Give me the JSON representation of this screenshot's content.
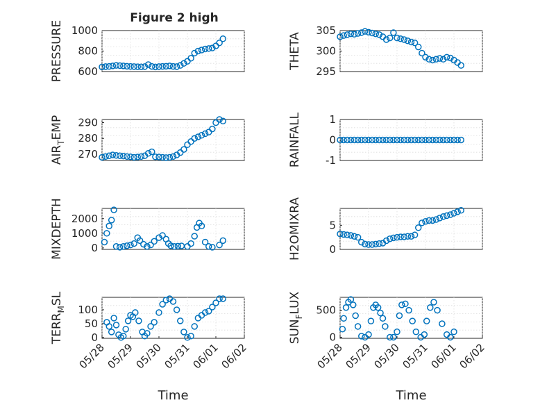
{
  "figure": {
    "title": "Figure 2 high"
  },
  "chart_data": [
    {
      "type": "scatter",
      "title": "Figure 2 high",
      "xlabel": "",
      "ylabel": "PRESSURE",
      "ylim": [
        600,
        1000
      ],
      "yticks": [
        600,
        800,
        1000
      ],
      "xticks": [],
      "grid": true,
      "x": [
        "05/28 00:00",
        "05/28 03:00",
        "05/28 06:00",
        "05/28 09:00",
        "05/28 12:00",
        "05/28 15:00",
        "05/28 18:00",
        "05/28 21:00",
        "05/29 00:00",
        "05/29 03:00",
        "05/29 06:00",
        "05/29 09:00",
        "05/29 12:00",
        "05/29 15:00",
        "05/29 18:00",
        "05/29 21:00",
        "05/30 00:00",
        "05/30 03:00",
        "05/30 06:00",
        "05/30 09:00",
        "05/30 12:00",
        "05/30 15:00",
        "05/30 18:00",
        "05/30 21:00",
        "05/31 00:00",
        "05/31 03:00",
        "05/31 06:00",
        "05/31 09:00",
        "05/31 12:00",
        "05/31 15:00",
        "05/31 18:00",
        "05/31 21:00",
        "06/01 00:00",
        "06/01 03:00",
        "06/01 06:00"
      ],
      "y": [
        645,
        648,
        650,
        655,
        660,
        658,
        655,
        652,
        650,
        648,
        647,
        646,
        648,
        668,
        650,
        645,
        648,
        650,
        652,
        655,
        650,
        648,
        660,
        680,
        700,
        730,
        780,
        800,
        810,
        820,
        825,
        830,
        850,
        880,
        920
      ]
    },
    {
      "type": "scatter",
      "xlabel": "",
      "ylabel": "THETA",
      "ylim": [
        295,
        305
      ],
      "yticks": [
        295,
        300,
        305
      ],
      "xticks": [],
      "grid": true,
      "x": [
        "05/28 00:00",
        "05/28 03:00",
        "05/28 06:00",
        "05/28 09:00",
        "05/28 12:00",
        "05/28 15:00",
        "05/28 18:00",
        "05/28 21:00",
        "05/29 00:00",
        "05/29 03:00",
        "05/29 06:00",
        "05/29 09:00",
        "05/29 12:00",
        "05/29 15:00",
        "05/29 18:00",
        "05/29 21:00",
        "05/30 00:00",
        "05/30 03:00",
        "05/30 06:00",
        "05/30 09:00",
        "05/30 12:00",
        "05/30 15:00",
        "05/30 18:00",
        "05/30 21:00",
        "05/31 00:00",
        "05/31 03:00",
        "05/31 06:00",
        "05/31 09:00",
        "05/31 12:00",
        "05/31 15:00",
        "05/31 18:00",
        "05/31 21:00",
        "06/01 00:00",
        "06/01 03:00",
        "06/01 06:00"
      ],
      "y": [
        303.5,
        303.8,
        304,
        304.2,
        304.1,
        304.3,
        304.5,
        304.8,
        304.6,
        304.4,
        304.2,
        304,
        303.5,
        302.8,
        303.2,
        304.5,
        303.2,
        303,
        302.8,
        302.5,
        302.2,
        302,
        301,
        299.5,
        298.5,
        298,
        297.8,
        298,
        298.2,
        298,
        298.5,
        298.3,
        297.8,
        297.2,
        296.5
      ]
    },
    {
      "type": "scatter",
      "xlabel": "",
      "ylabel_parts": {
        "main": "AIR",
        "sub": "T",
        "rest": "EMP"
      },
      "ylim": [
        266,
        292
      ],
      "yticks": [
        270,
        280,
        290
      ],
      "xticks": [],
      "grid": true,
      "x": [
        "05/28 00:00",
        "05/28 03:00",
        "05/28 06:00",
        "05/28 09:00",
        "05/28 12:00",
        "05/28 15:00",
        "05/28 18:00",
        "05/28 21:00",
        "05/29 00:00",
        "05/29 03:00",
        "05/29 06:00",
        "05/29 09:00",
        "05/29 12:00",
        "05/29 15:00",
        "05/29 18:00",
        "05/29 21:00",
        "05/30 00:00",
        "05/30 03:00",
        "05/30 06:00",
        "05/30 09:00",
        "05/30 12:00",
        "05/30 15:00",
        "05/30 18:00",
        "05/30 21:00",
        "05/31 00:00",
        "05/31 03:00",
        "05/31 06:00",
        "05/31 09:00",
        "05/31 12:00",
        "05/31 15:00",
        "05/31 18:00",
        "05/31 21:00",
        "06/01 00:00",
        "06/01 03:00",
        "06/01 06:00"
      ],
      "y": [
        268,
        268.5,
        269,
        269.5,
        269.2,
        269,
        268.8,
        268.5,
        268.3,
        268,
        268.2,
        268.5,
        269,
        270.5,
        271.5,
        268.3,
        268.2,
        268,
        267.8,
        268,
        268.5,
        269.5,
        271,
        273,
        276,
        278,
        280,
        281,
        282,
        283,
        284,
        286,
        290,
        292,
        291
      ]
    },
    {
      "type": "scatter",
      "xlabel": "",
      "ylabel": "RAINFALL",
      "ylim": [
        -1,
        1
      ],
      "yticks": [
        -1,
        0,
        1
      ],
      "xticks": [],
      "grid": true,
      "x": [
        "05/28 00:00",
        "05/28 03:00",
        "05/28 06:00",
        "05/28 09:00",
        "05/28 12:00",
        "05/28 15:00",
        "05/28 18:00",
        "05/28 21:00",
        "05/29 00:00",
        "05/29 03:00",
        "05/29 06:00",
        "05/29 09:00",
        "05/29 12:00",
        "05/29 15:00",
        "05/29 18:00",
        "05/29 21:00",
        "05/30 00:00",
        "05/30 03:00",
        "05/30 06:00",
        "05/30 09:00",
        "05/30 12:00",
        "05/30 15:00",
        "05/30 18:00",
        "05/30 21:00",
        "05/31 00:00",
        "05/31 03:00",
        "05/31 06:00",
        "05/31 09:00",
        "05/31 12:00",
        "05/31 15:00",
        "05/31 18:00",
        "05/31 21:00",
        "06/01 00:00",
        "06/01 03:00",
        "06/01 06:00"
      ],
      "y": [
        0,
        0,
        0,
        0,
        0,
        0,
        0,
        0,
        0,
        0,
        0,
        0,
        0,
        0,
        0,
        0,
        0,
        0,
        0,
        0,
        0,
        0,
        0,
        0,
        0,
        0,
        0,
        0,
        0,
        0,
        0,
        0,
        0,
        0,
        0
      ]
    },
    {
      "type": "scatter",
      "xlabel": "",
      "ylabel": "MIXDEPTH",
      "ylim": [
        -100,
        2700
      ],
      "yticks": [
        0,
        1000,
        2000
      ],
      "xticks": [],
      "grid": true,
      "x": [
        "05/28 02:00",
        "05/28 04:00",
        "05/28 06:00",
        "05/28 08:00",
        "05/28 10:00",
        "05/28 12:00",
        "05/28 15:00",
        "05/28 18:00",
        "05/28 21:00",
        "05/29 00:00",
        "05/29 03:00",
        "05/29 06:00",
        "05/29 08:00",
        "05/29 11:00",
        "05/29 14:00",
        "05/29 17:00",
        "05/29 20:00",
        "05/30 00:00",
        "05/30 03:00",
        "05/30 06:00",
        "05/30 08:00",
        "05/30 10:00",
        "05/30 13:00",
        "05/30 16:00",
        "05/30 19:00",
        "05/31 00:00",
        "05/31 03:00",
        "05/31 06:00",
        "05/31 08:00",
        "05/31 10:00",
        "05/31 12:00",
        "05/31 15:00",
        "05/31 18:00",
        "05/31 21:00",
        "06/01 03:00",
        "06/01 06:00"
      ],
      "y": [
        400,
        1000,
        1500,
        1900,
        2600,
        100,
        50,
        100,
        150,
        200,
        300,
        700,
        500,
        250,
        100,
        200,
        450,
        700,
        850,
        600,
        300,
        150,
        100,
        120,
        140,
        100,
        300,
        800,
        1400,
        1700,
        1500,
        400,
        100,
        50,
        200,
        500
      ]
    },
    {
      "type": "scatter",
      "xlabel": "",
      "ylabel": "H2OMIXRA",
      "ylim": [
        0,
        8.5
      ],
      "yticks": [
        0,
        5
      ],
      "xticks": [],
      "grid": true,
      "x": [
        "05/28 00:00",
        "05/28 03:00",
        "05/28 06:00",
        "05/28 09:00",
        "05/28 12:00",
        "05/28 15:00",
        "05/28 18:00",
        "05/28 21:00",
        "05/29 00:00",
        "05/29 03:00",
        "05/29 06:00",
        "05/29 09:00",
        "05/29 12:00",
        "05/29 15:00",
        "05/29 18:00",
        "05/29 21:00",
        "05/30 00:00",
        "05/30 03:00",
        "05/30 06:00",
        "05/30 09:00",
        "05/30 12:00",
        "05/30 15:00",
        "05/30 18:00",
        "05/30 21:00",
        "05/31 00:00",
        "05/31 03:00",
        "05/31 06:00",
        "05/31 09:00",
        "05/31 12:00",
        "05/31 15:00",
        "05/31 18:00",
        "05/31 21:00",
        "06/01 00:00",
        "06/01 03:00",
        "06/01 06:00"
      ],
      "y": [
        3.2,
        3.1,
        3,
        2.9,
        2.7,
        2.5,
        1.5,
        1.1,
        1,
        1,
        1.1,
        1.2,
        1.3,
        1.8,
        2.2,
        2.4,
        2.5,
        2.6,
        2.6,
        2.7,
        2.7,
        3,
        4.5,
        5.5,
        5.8,
        6,
        6,
        6.2,
        6.5,
        6.8,
        7,
        7.2,
        7.5,
        7.8,
        8.1
      ]
    },
    {
      "type": "scatter",
      "xlabel": "Time",
      "ylabel_parts": {
        "main": "TERR",
        "sub": "M",
        "rest": "SL"
      },
      "ylim": [
        -3,
        145
      ],
      "yticks": [
        0,
        50,
        100
      ],
      "xticks": [
        "05/28",
        "05/29",
        "05/30",
        "05/31",
        "06/01",
        "06/02"
      ],
      "grid": true,
      "x": [
        "05/28 04:00",
        "05/28 06:00",
        "05/28 08:00",
        "05/28 10:00",
        "05/28 12:00",
        "05/28 14:00",
        "05/28 16:00",
        "05/28 18:00",
        "05/28 20:00",
        "05/28 22:00",
        "05/29 00:00",
        "05/29 02:00",
        "05/29 04:00",
        "05/29 07:00",
        "05/29 10:00",
        "05/29 12:00",
        "05/29 14:00",
        "05/29 17:00",
        "05/29 20:00",
        "05/30 00:00",
        "05/30 03:00",
        "05/30 06:00",
        "05/30 09:00",
        "05/30 12:00",
        "05/30 15:00",
        "05/30 18:00",
        "05/30 21:00",
        "05/31 00:00",
        "05/31 03:00",
        "05/31 06:00",
        "05/31 09:00",
        "05/31 12:00",
        "05/31 15:00",
        "05/31 18:00",
        "05/31 21:00",
        "06/01 00:00",
        "06/01 03:00",
        "06/01 06:00"
      ],
      "y": [
        55,
        40,
        20,
        70,
        45,
        10,
        0,
        5,
        30,
        60,
        80,
        75,
        90,
        60,
        20,
        5,
        15,
        40,
        55,
        90,
        120,
        135,
        140,
        130,
        100,
        60,
        20,
        0,
        5,
        40,
        70,
        80,
        90,
        95,
        110,
        125,
        140,
        140
      ]
    },
    {
      "type": "scatter",
      "xlabel": "Time",
      "ylabel_parts": {
        "main": "SUN",
        "sub": "F",
        "rest": "LUX"
      },
      "ylim": [
        -20,
        740
      ],
      "yticks": [
        0,
        500
      ],
      "xticks": [
        "05/28",
        "05/29",
        "05/30",
        "05/31",
        "06/01",
        "06/02"
      ],
      "grid": true,
      "x": [
        "05/28 02:00",
        "05/28 03:00",
        "05/28 05:00",
        "05/28 07:00",
        "05/28 09:00",
        "05/28 11:00",
        "05/28 13:00",
        "05/28 15:00",
        "05/28 18:00",
        "05/28 21:00",
        "05/29 00:00",
        "05/29 02:00",
        "05/29 04:00",
        "05/29 06:00",
        "05/29 08:00",
        "05/29 10:00",
        "05/29 12:00",
        "05/29 14:00",
        "05/29 18:00",
        "05/29 21:00",
        "05/30 00:00",
        "05/30 02:00",
        "05/30 04:00",
        "05/30 07:00",
        "05/30 10:00",
        "05/30 13:00",
        "05/30 16:00",
        "05/30 20:00",
        "05/30 23:00",
        "05/31 01:00",
        "05/31 04:00",
        "05/31 07:00",
        "05/31 10:00",
        "05/31 14:00",
        "05/31 18:00",
        "05/31 21:00",
        "06/01 00:00"
      ],
      "y": [
        150,
        350,
        550,
        650,
        700,
        600,
        400,
        200,
        20,
        0,
        50,
        300,
        550,
        600,
        550,
        450,
        350,
        200,
        0,
        0,
        100,
        400,
        600,
        620,
        500,
        300,
        100,
        0,
        50,
        300,
        550,
        650,
        500,
        250,
        50,
        0,
        100
      ]
    }
  ]
}
